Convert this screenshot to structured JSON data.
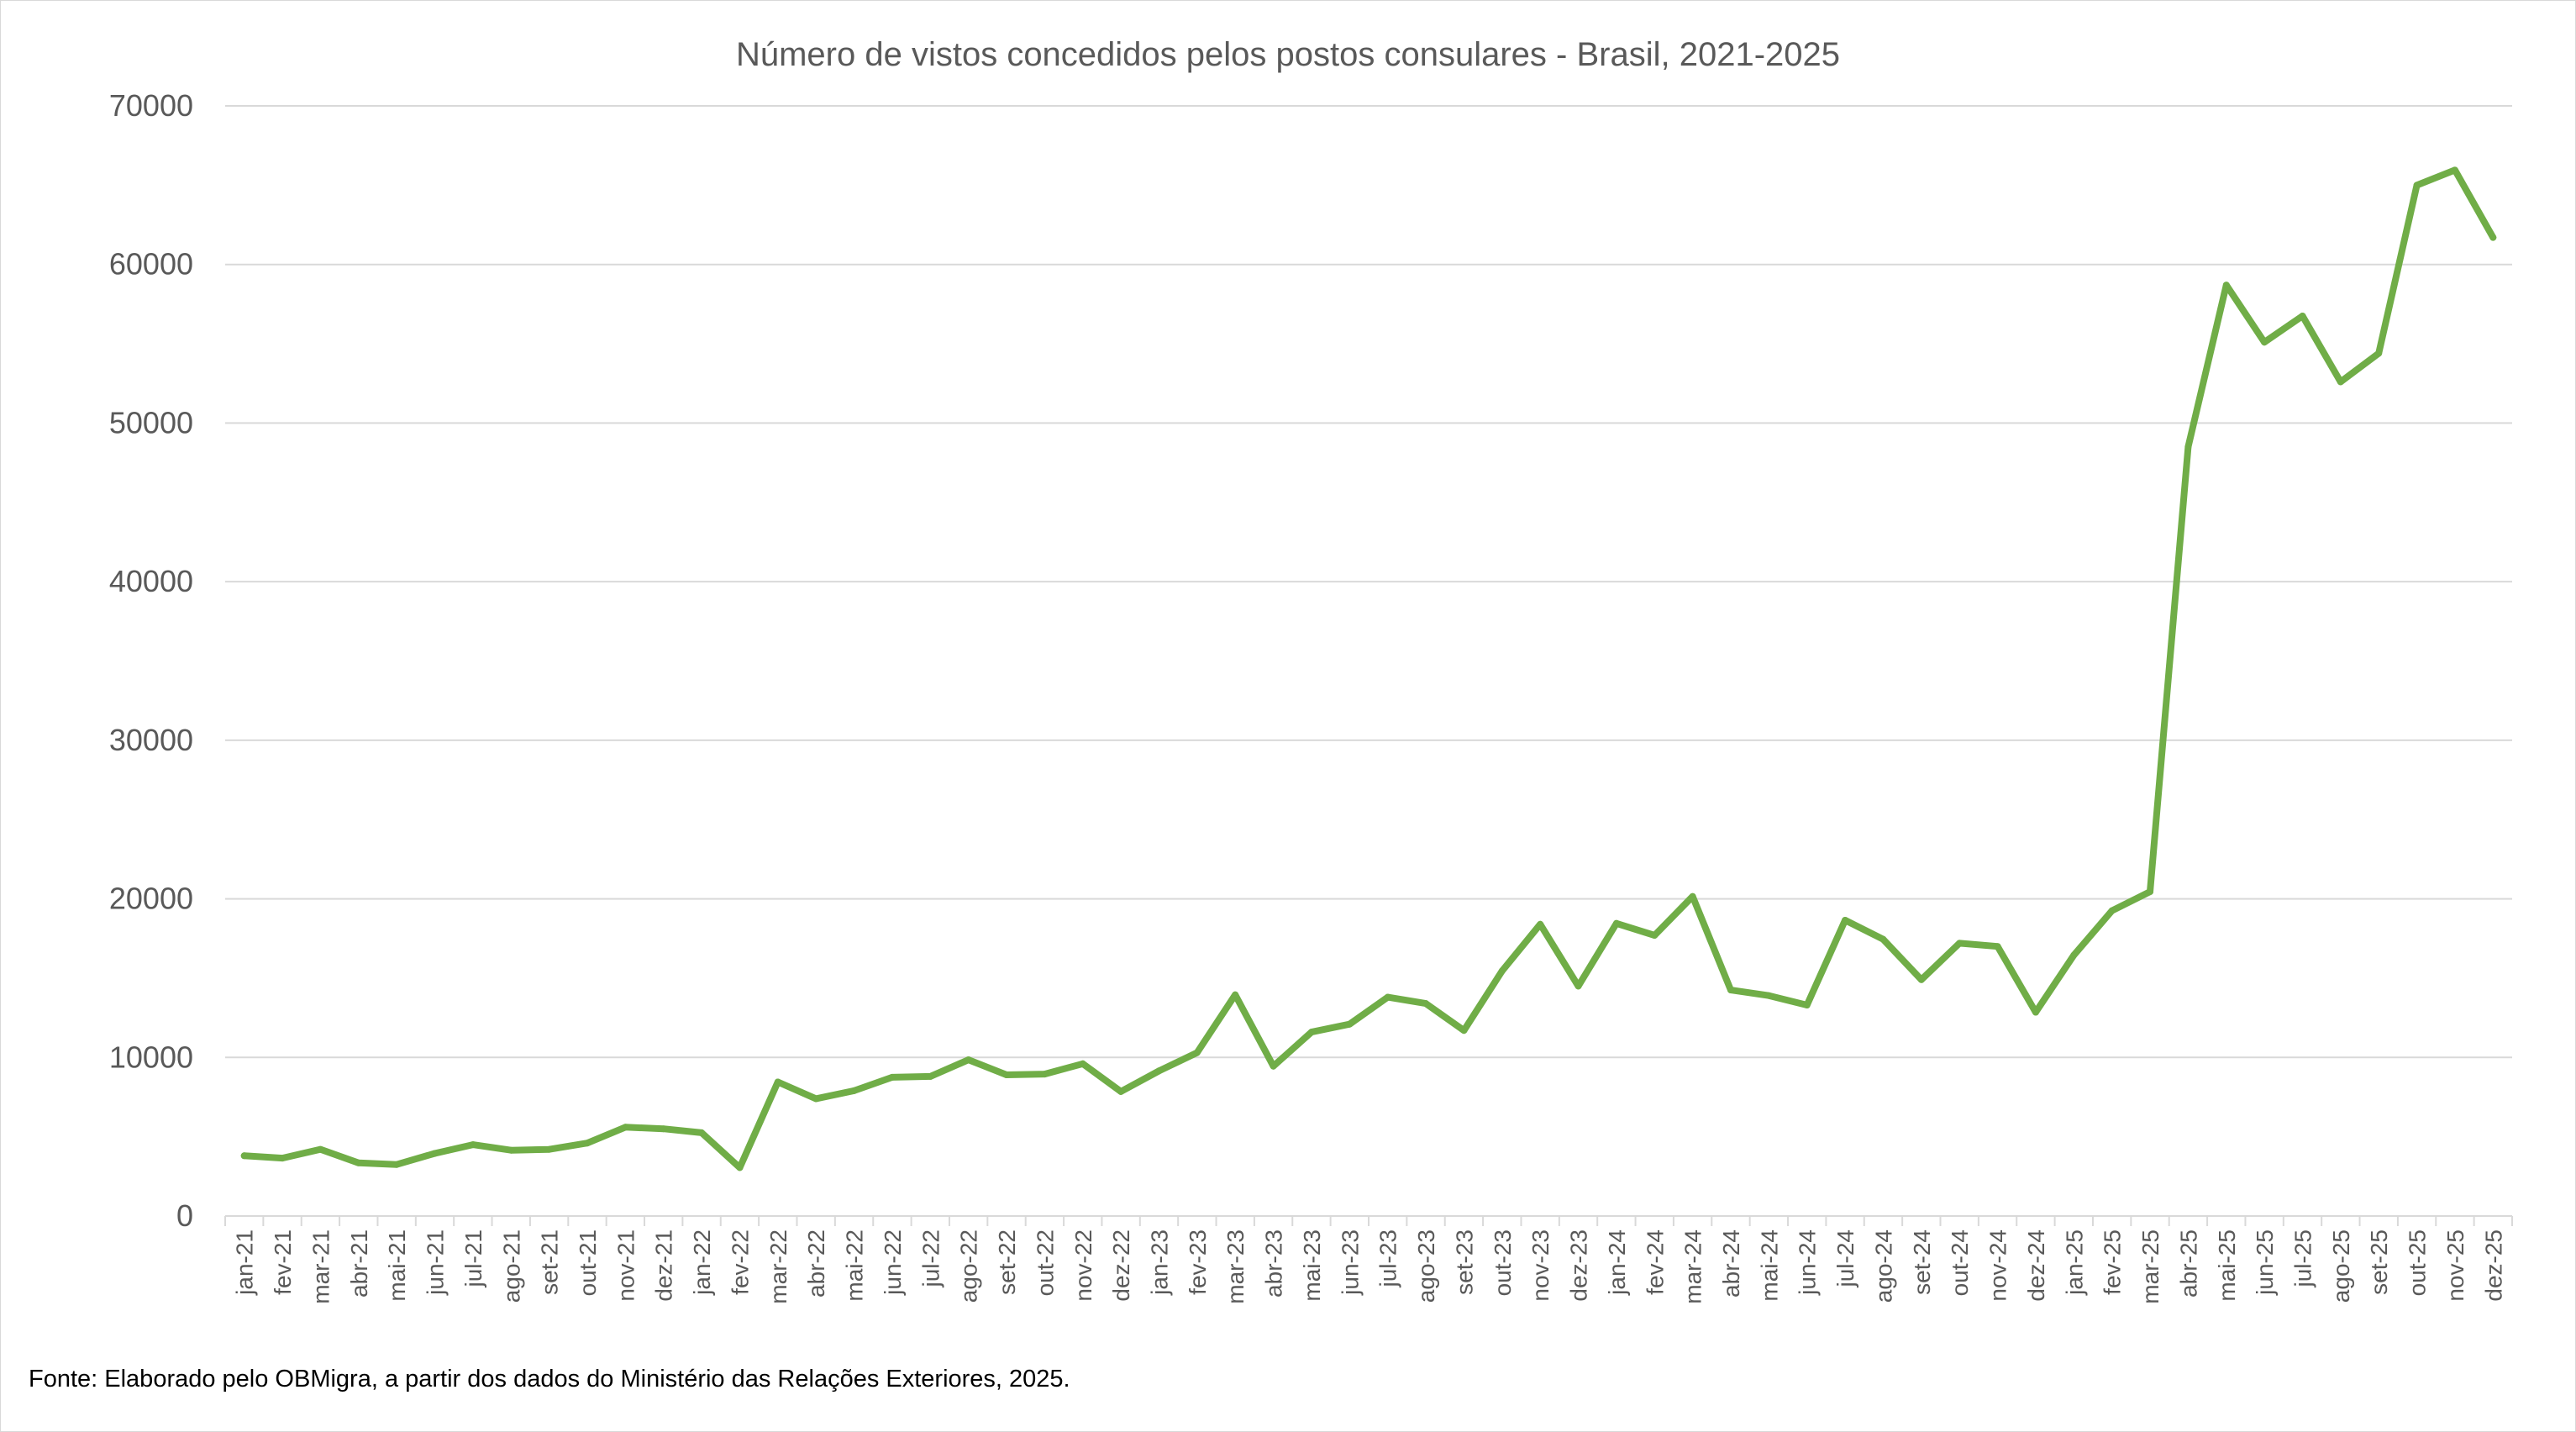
{
  "chart_data": {
    "type": "line",
    "title": "Número de vistos concedidos pelos postos consulares - Brasil, 2021-2025",
    "xlabel": "",
    "ylabel": "",
    "ylim": [
      0,
      70000
    ],
    "yticks": [
      0,
      10000,
      20000,
      30000,
      40000,
      50000,
      60000,
      70000
    ],
    "grid": "horizontal",
    "legend": "none",
    "categories": [
      "jan-21",
      "fev-21",
      "mar-21",
      "abr-21",
      "mai-21",
      "jun-21",
      "jul-21",
      "ago-21",
      "set-21",
      "out-21",
      "nov-21",
      "dez-21",
      "jan-22",
      "fev-22",
      "mar-22",
      "abr-22",
      "mai-22",
      "jun-22",
      "jul-22",
      "ago-22",
      "set-22",
      "out-22",
      "nov-22",
      "dez-22",
      "jan-23",
      "fev-23",
      "mar-23",
      "abr-23",
      "mai-23",
      "jun-23",
      "jul-23",
      "ago-23",
      "set-23",
      "out-23",
      "nov-23",
      "dez-23",
      "jan-24",
      "fev-24",
      "mar-24",
      "abr-24",
      "mai-24",
      "jun-24",
      "jul-24",
      "ago-24",
      "set-24",
      "out-24",
      "nov-24",
      "dez-24",
      "jan-25",
      "fev-25",
      "mar-25",
      "abr-25",
      "mai-25",
      "jun-25",
      "jul-25",
      "ago-25",
      "set-25",
      "out-25",
      "nov-25",
      "dez-25"
    ],
    "series": [
      {
        "color": "#70ad47",
        "values": [
          3800,
          3650,
          4200,
          3350,
          3250,
          3950,
          4500,
          4150,
          4200,
          4600,
          5600,
          5500,
          5250,
          3050,
          8450,
          7400,
          7900,
          8750,
          8800,
          9850,
          8900,
          8950,
          9600,
          7850,
          9150,
          10300,
          13950,
          9450,
          11600,
          12100,
          13800,
          13400,
          11700,
          15450,
          18400,
          14500,
          18450,
          17700,
          20150,
          14250,
          13900,
          13300,
          18650,
          17450,
          14900,
          17200,
          17000,
          12850,
          16450,
          19250,
          20450,
          48500,
          58700,
          55100,
          56750,
          52600,
          54400,
          65000,
          65950,
          61700
        ]
      }
    ]
  },
  "footer": {
    "source_text": "Fonte: Elaborado pelo OBMigra, a partir dos dados do Ministério das Relações Exteriores, 2025."
  }
}
